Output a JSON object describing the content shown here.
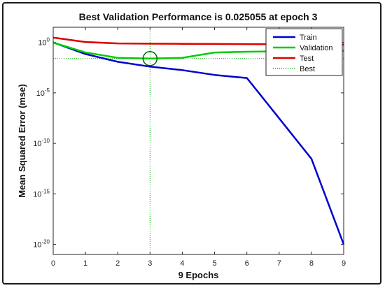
{
  "chart_data": {
    "type": "line",
    "title": "Best Validation Performance is 0.025055 at epoch 3",
    "xlabel": "9 Epochs",
    "ylabel": "Mean Squared Error  (mse)",
    "yscale": "log",
    "xlim": [
      0,
      9
    ],
    "ylim_exponent": [
      -21,
      1.5
    ],
    "xticks": [
      "0",
      "1",
      "2",
      "3",
      "4",
      "5",
      "6",
      "7",
      "8",
      "9"
    ],
    "yticks": [
      {
        "base": "10",
        "exp": "0",
        "value": 1
      },
      {
        "base": "10",
        "exp": "-5",
        "value": 1e-05
      },
      {
        "base": "10",
        "exp": "-10",
        "value": 1e-10
      },
      {
        "base": "10",
        "exp": "-15",
        "value": 1e-15
      },
      {
        "base": "10",
        "exp": "-20",
        "value": 1e-20
      }
    ],
    "legend_position": "top-right",
    "series": [
      {
        "name": "Train",
        "color": "#0000cc",
        "style": "solid",
        "x": [
          0,
          1,
          2,
          3,
          4,
          5,
          6,
          7,
          8,
          9
        ],
        "y": [
          1.0,
          0.07,
          0.012,
          0.004,
          0.0018,
          0.0006,
          0.0003,
          3e-08,
          3e-12,
          1e-20
        ]
      },
      {
        "name": "Validation",
        "color": "#00cc00",
        "style": "solid",
        "x": [
          0,
          1,
          2,
          3,
          4,
          5,
          6,
          7,
          8,
          9
        ],
        "y": [
          0.95,
          0.1,
          0.03,
          0.025055,
          0.03,
          0.1,
          0.12,
          0.13,
          0.14,
          0.15
        ]
      },
      {
        "name": "Test",
        "color": "#dd0000",
        "style": "solid",
        "x": [
          0,
          1,
          2,
          3,
          4,
          5,
          6,
          7,
          8,
          9
        ],
        "y": [
          3.0,
          1.1,
          0.8,
          0.75,
          0.72,
          0.7,
          0.68,
          0.66,
          0.65,
          0.6
        ]
      },
      {
        "name": "Best",
        "color": "#00aa00",
        "style": "dotted"
      }
    ],
    "best": {
      "epoch": 3,
      "value": 0.025055
    }
  }
}
